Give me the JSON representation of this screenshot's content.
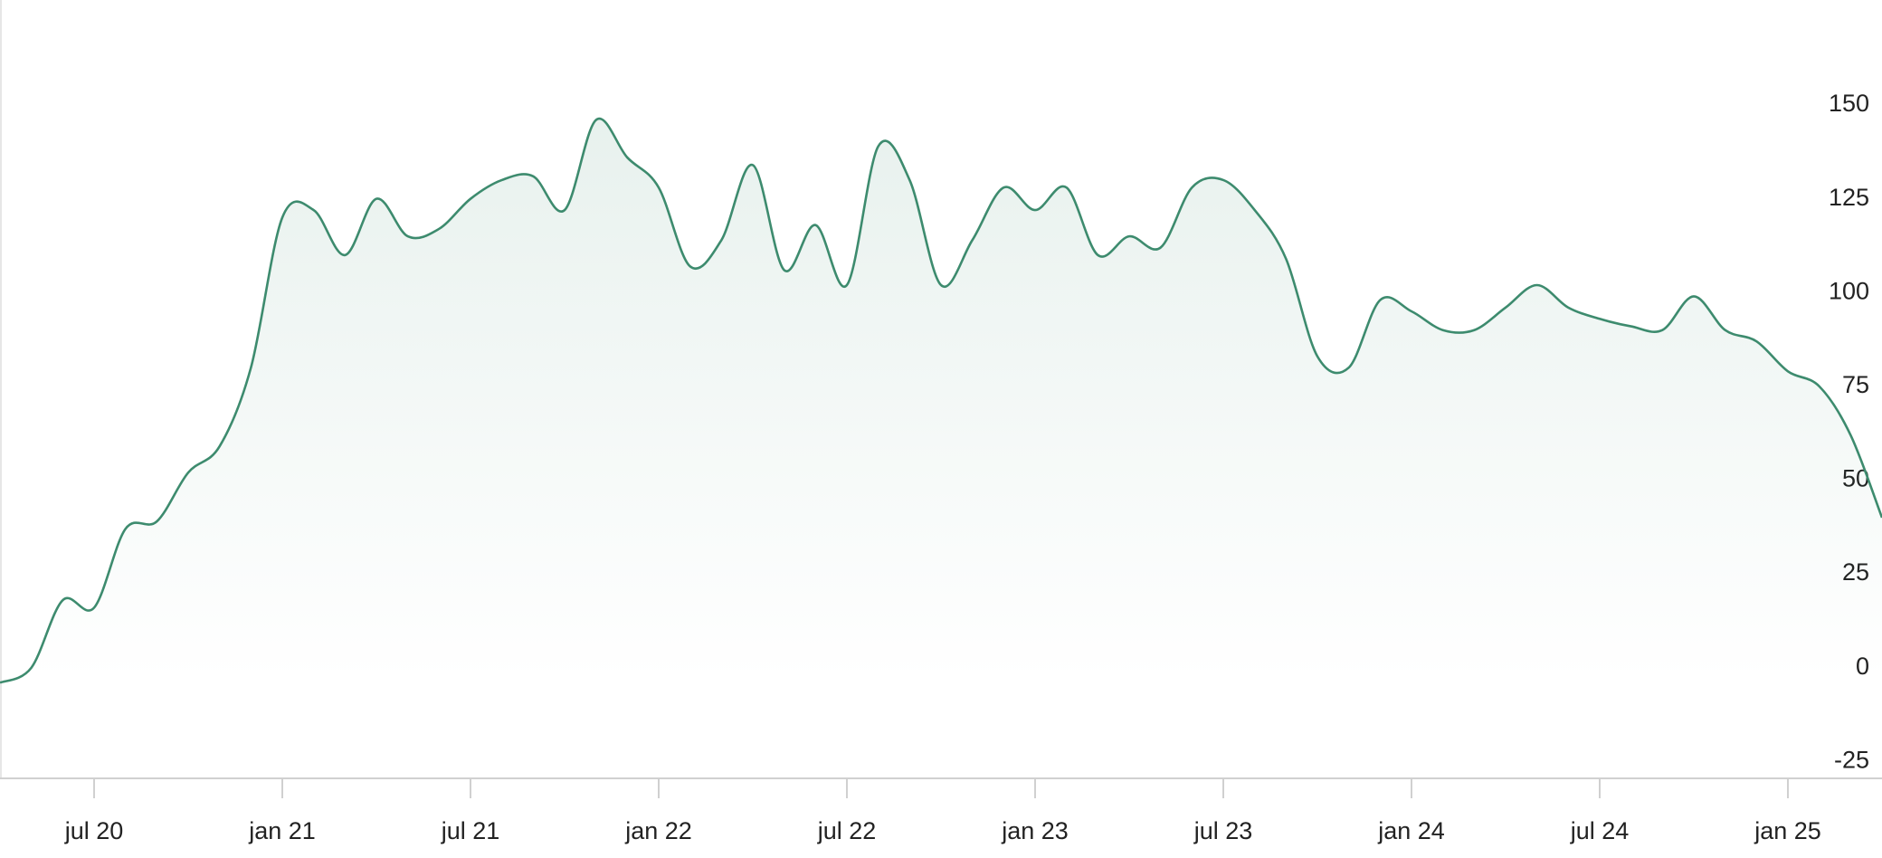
{
  "chart_data": {
    "type": "line",
    "x": [
      "2020-04",
      "2020-05",
      "2020-06",
      "2020-07",
      "2020-08",
      "2020-09",
      "2020-10",
      "2020-11",
      "2020-12",
      "2021-01",
      "2021-02",
      "2021-03",
      "2021-04",
      "2021-05",
      "2021-06",
      "2021-07",
      "2021-08",
      "2021-09",
      "2021-10",
      "2021-11",
      "2021-12",
      "2022-01",
      "2022-02",
      "2022-03",
      "2022-04",
      "2022-05",
      "2022-06",
      "2022-07",
      "2022-08",
      "2022-09",
      "2022-10",
      "2022-11",
      "2022-12",
      "2023-01",
      "2023-02",
      "2023-03",
      "2023-04",
      "2023-05",
      "2023-06",
      "2023-07",
      "2023-08",
      "2023-09",
      "2023-10",
      "2023-11",
      "2023-12",
      "2024-01",
      "2024-02",
      "2024-03",
      "2024-04",
      "2024-05",
      "2024-06",
      "2024-07",
      "2024-08",
      "2024-09",
      "2024-10",
      "2024-11",
      "2024-12",
      "2025-01",
      "2025-02",
      "2025-03",
      "2025-04"
    ],
    "series": [
      {
        "color": "#3d8b6e",
        "values": [
          -4,
          0,
          18,
          16,
          37,
          39,
          52,
          59,
          80,
          120,
          122,
          110,
          125,
          115,
          117,
          125,
          130,
          131,
          122,
          146,
          136,
          128,
          107,
          114,
          134,
          106,
          118,
          102,
          139,
          130,
          102,
          114,
          128,
          122,
          128,
          110,
          115,
          112,
          128,
          130,
          122,
          109,
          83,
          80,
          98,
          95,
          90,
          90,
          96,
          102,
          96,
          93,
          91,
          90,
          99,
          90,
          87,
          79,
          75,
          62,
          40
        ]
      }
    ],
    "xlim": [
      "2020-04",
      "2025-04"
    ],
    "xticks": [
      {
        "value": "2020-07",
        "label": "jul 20"
      },
      {
        "value": "2021-01",
        "label": "jan 21"
      },
      {
        "value": "2021-07",
        "label": "jul 21"
      },
      {
        "value": "2022-01",
        "label": "jan 22"
      },
      {
        "value": "2022-07",
        "label": "jul 22"
      },
      {
        "value": "2023-01",
        "label": "jan 23"
      },
      {
        "value": "2023-07",
        "label": "jul 23"
      },
      {
        "value": "2024-01",
        "label": "jan 24"
      },
      {
        "value": "2024-07",
        "label": "jul 24"
      },
      {
        "value": "2025-01",
        "label": "jan 25"
      }
    ],
    "ylim": [
      -29.5,
      178
    ],
    "yticks": [
      -25,
      0,
      25,
      50,
      75,
      100,
      125,
      150
    ]
  }
}
